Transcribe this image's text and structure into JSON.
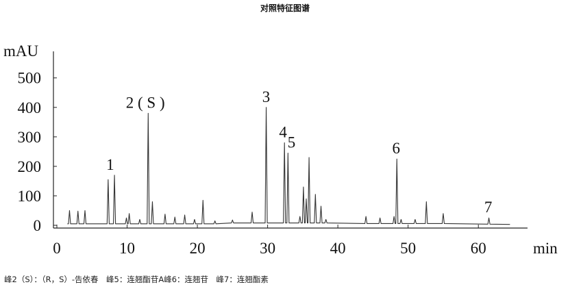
{
  "chart_data": {
    "type": "line",
    "title": "对照特征图谱",
    "y_label": "mAU",
    "x_label": "min",
    "caption": "峰2（S）：（R，S）-告依春　峰5：连翘酯苷A峰6：连翘苷　峰7：连翘酯素",
    "xlim": [
      0,
      67
    ],
    "ylim": [
      0,
      590
    ],
    "xticks": [
      0,
      10,
      20,
      30,
      40,
      50,
      60
    ],
    "yticks": [
      0,
      100,
      200,
      300,
      400,
      500
    ],
    "color": "#333333",
    "x": [
      1.5,
      1.65,
      1.8,
      1.95,
      2.85,
      3.0,
      3.15,
      3.85,
      4.0,
      4.15,
      7.15,
      7.3,
      7.45,
      8.05,
      8.2,
      8.35,
      9.75,
      9.9,
      10.05,
      10.15,
      10.3,
      10.45,
      11.65,
      11.8,
      11.95,
      12.85,
      13.0,
      13.15,
      13.45,
      13.6,
      13.75,
      15.25,
      15.4,
      15.55,
      16.65,
      16.8,
      16.95,
      18.05,
      18.2,
      18.35,
      19.45,
      19.6,
      19.75,
      20.65,
      20.8,
      20.95,
      22.35,
      22.5,
      22.65,
      24.85,
      25.0,
      25.15,
      27.65,
      27.8,
      27.95,
      29.65,
      29.8,
      29.95,
      32.25,
      32.4,
      32.55,
      32.75,
      32.9,
      33.05,
      34.45,
      34.6,
      34.75,
      34.95,
      35.1,
      35.25,
      35.35,
      35.5,
      35.65,
      35.75,
      35.9,
      36.05,
      36.65,
      36.8,
      36.95,
      37.45,
      37.6,
      37.75,
      38.15,
      38.3,
      38.45,
      43.85,
      44.0,
      44.15,
      45.85,
      46.0,
      46.15,
      47.85,
      48.0,
      48.15,
      48.25,
      48.4,
      48.55,
      48.85,
      49.0,
      49.15,
      50.85,
      51.0,
      51.15,
      52.45,
      52.6,
      52.75,
      54.85,
      55.0,
      55.15,
      61.35,
      61.5,
      61.65,
      64.5
    ],
    "values": [
      5,
      5,
      50,
      5,
      5,
      48,
      5,
      5,
      50,
      5,
      5,
      155,
      5,
      5,
      170,
      5,
      5,
      25,
      5,
      5,
      40,
      5,
      5,
      20,
      5,
      5,
      380,
      5,
      5,
      80,
      5,
      5,
      38,
      5,
      5,
      28,
      5,
      5,
      35,
      5,
      5,
      20,
      5,
      5,
      85,
      5,
      5,
      15,
      5,
      8,
      18,
      8,
      8,
      45,
      8,
      8,
      400,
      8,
      8,
      280,
      8,
      8,
      245,
      8,
      8,
      30,
      8,
      8,
      130,
      8,
      8,
      90,
      8,
      8,
      230,
      8,
      8,
      105,
      8,
      8,
      65,
      8,
      8,
      20,
      8,
      6,
      30,
      6,
      6,
      25,
      6,
      6,
      30,
      6,
      6,
      225,
      6,
      6,
      20,
      6,
      6,
      20,
      6,
      6,
      80,
      6,
      6,
      40,
      6,
      4,
      25,
      4,
      3
    ],
    "annotations": [
      {
        "text": "1",
        "x": 7.6,
        "y": 170
      },
      {
        "text": "2 ( S )",
        "x": 12.6,
        "y": 380
      },
      {
        "text": "3",
        "x": 29.8,
        "y": 400
      },
      {
        "text": "4",
        "x": 32.2,
        "y": 280
      },
      {
        "text": "5",
        "x": 33.4,
        "y": 245
      },
      {
        "text": "6",
        "x": 48.3,
        "y": 225
      },
      {
        "text": "7",
        "x": 61.4,
        "y": 25
      }
    ]
  }
}
